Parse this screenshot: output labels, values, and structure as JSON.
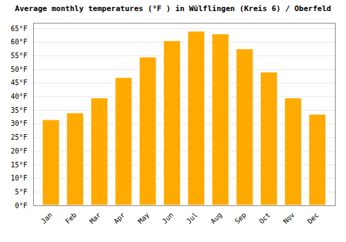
{
  "chart_data": {
    "type": "bar",
    "title": "Average monthly temperatures (°F ) in Wülflingen (Kreis 6) / Oberfeld",
    "categories": [
      "Jan",
      "Feb",
      "Mar",
      "Apr",
      "May",
      "Jun",
      "Jul",
      "Aug",
      "Sep",
      "Oct",
      "Nov",
      "Dec"
    ],
    "values": [
      31.5,
      34.0,
      39.5,
      47.0,
      54.5,
      60.5,
      64.0,
      63.0,
      57.5,
      49.0,
      39.5,
      33.5
    ],
    "color": "#FFAA00",
    "ylim": [
      0,
      67
    ],
    "yticks": [
      {
        "value": 0,
        "label": "0°F"
      },
      {
        "value": 5,
        "label": "5°F"
      },
      {
        "value": 10,
        "label": "10°F"
      },
      {
        "value": 15,
        "label": "15°F"
      },
      {
        "value": 20,
        "label": "20°F"
      },
      {
        "value": 25,
        "label": "25°F"
      },
      {
        "value": 30,
        "label": "30°F"
      },
      {
        "value": 35,
        "label": "35°F"
      },
      {
        "value": 40,
        "label": "40°F"
      },
      {
        "value": 45,
        "label": "45°F"
      },
      {
        "value": 50,
        "label": "50°F"
      },
      {
        "value": 55,
        "label": "55°F"
      },
      {
        "value": 60,
        "label": "60°F"
      },
      {
        "value": 65,
        "label": "65°F"
      }
    ],
    "grid": true
  }
}
